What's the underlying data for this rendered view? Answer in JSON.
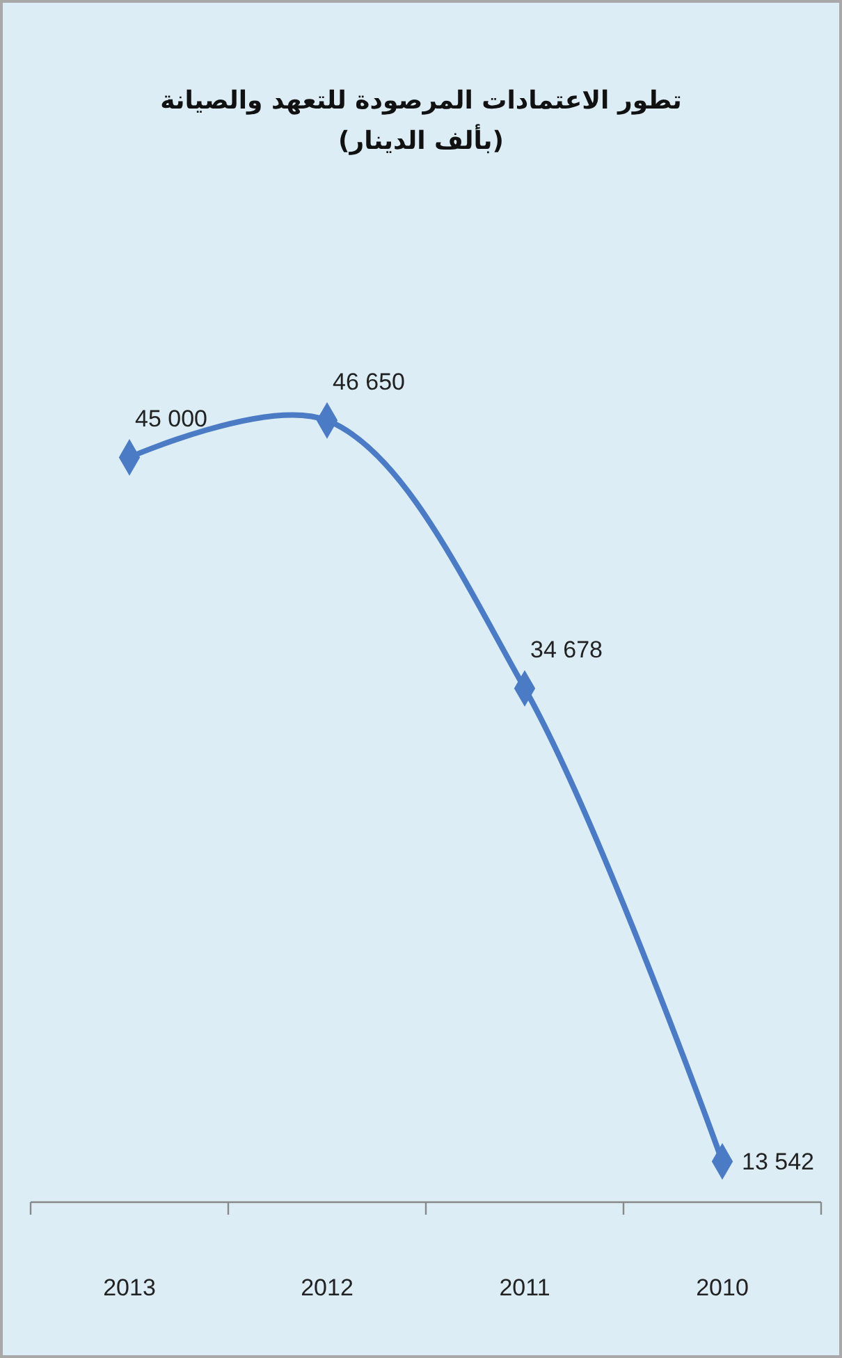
{
  "chart_data": {
    "type": "line",
    "title": "تطور الاعتمادات المرصودة للتعهد والصيانة",
    "subtitle": "(بألف الدينار)",
    "categories": [
      "2013",
      "2012",
      "2011",
      "2010"
    ],
    "series": [
      {
        "color": "#4a7bc4",
        "values": [
          45000,
          46650,
          34678,
          13542
        ],
        "value_labels": [
          "45 000",
          "46 650",
          "34 678",
          "13 542"
        ]
      }
    ],
    "marker": "diamond"
  }
}
